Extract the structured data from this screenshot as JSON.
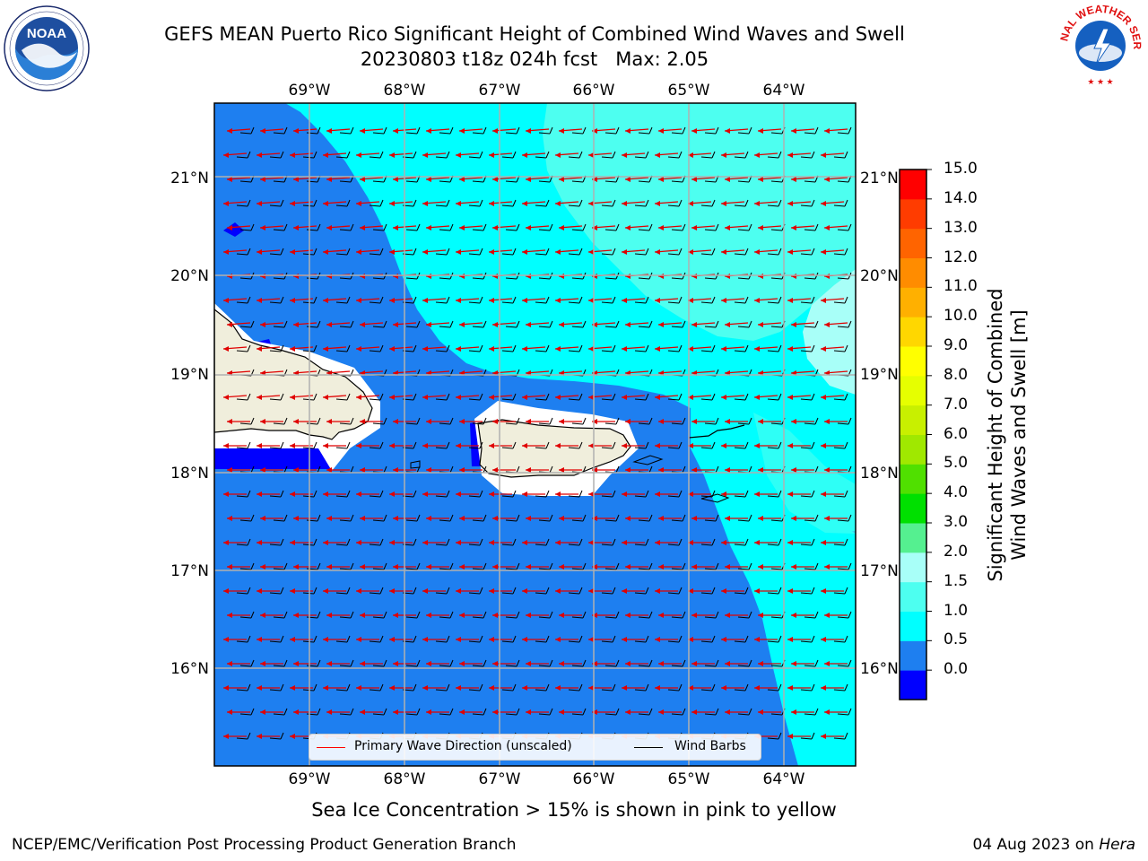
{
  "title": {
    "line1": "GEFS MEAN Puerto Rico Significant Height of Combined Wind Waves and Swell",
    "line2": "20230803 t18z 024h fcst   Max: 2.05"
  },
  "logos": {
    "left": {
      "name": "noaa-logo",
      "text": "NOAA"
    },
    "right": {
      "name": "national-weather-service-logo",
      "text": "NATIONAL WEATHER SERVICE"
    }
  },
  "map": {
    "lon_ticks": [
      "69°W",
      "68°W",
      "67°W",
      "66°W",
      "65°W",
      "64°W"
    ],
    "lat_ticks": [
      "21°N",
      "20°N",
      "19°N",
      "18°N",
      "17°N",
      "16°N"
    ],
    "lon_range": [
      -70.0,
      -63.25
    ],
    "lat_range": [
      15.0,
      21.75
    ]
  },
  "legend": {
    "primary_wave": "Primary Wave Direction (unscaled)",
    "wind_barbs": "Wind Barbs",
    "primary_wave_color": "#ff0000",
    "wind_barbs_color": "#000000"
  },
  "colorbar": {
    "label": "Significant Height of Combined Wind Waves and Swell [m]",
    "label_line1": "Significant Height of Combined",
    "label_line2": "Wind Waves and Swell [m]",
    "ticks": [
      "15.0",
      "14.0",
      "13.0",
      "12.0",
      "11.0",
      "10.0",
      "9.0",
      "8.0",
      "7.0",
      "6.0",
      "5.0",
      "4.0",
      "3.0",
      "2.0",
      "1.5",
      "1.0",
      "0.5",
      "0.0"
    ],
    "colors_bottom_to_top": [
      "#0000ff",
      "#1e7ff0",
      "#00ffff",
      "#4dfff0",
      "#a8fff8",
      "#55f090",
      "#00e000",
      "#50e000",
      "#a0e800",
      "#c8f000",
      "#e6ff00",
      "#ffff00",
      "#ffd700",
      "#ffb000",
      "#ff8c00",
      "#ff6400",
      "#ff3c00",
      "#ff0000"
    ]
  },
  "chart_data": {
    "type": "heatmap",
    "title": "GEFS MEAN Puerto Rico Significant Height of Combined Wind Waves and Swell",
    "max_value": 2.05,
    "units": "m",
    "regions": [
      {
        "name": "west and south sea",
        "value_range": [
          0.5,
          1.0
        ]
      },
      {
        "name": "northeast sea",
        "value_range": [
          1.0,
          1.5
        ]
      },
      {
        "name": "far northeast sea",
        "value_range": [
          1.5,
          2.0
        ]
      },
      {
        "name": "east edge near 19.5N",
        "value_range": [
          2.0,
          3.0
        ]
      }
    ]
  },
  "subtitle": "Sea Ice Concentration > 15% is shown in pink to yellow",
  "footer": {
    "left": "NCEP/EMC/Verification Post Processing Product Generation Branch",
    "right_prefix": "04 Aug 2023 on ",
    "right_italic": "Hera"
  }
}
